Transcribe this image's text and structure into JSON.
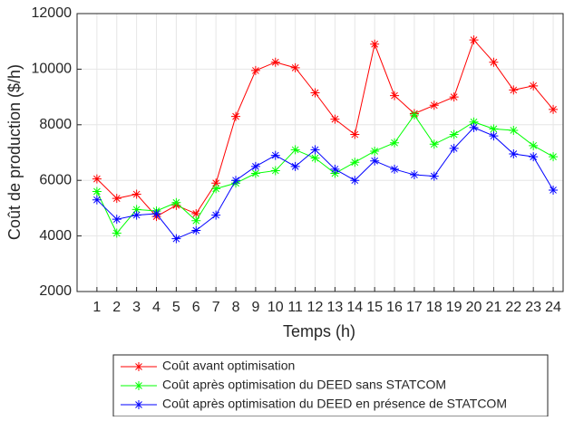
{
  "chart_data": {
    "type": "line",
    "xlabel": "Temps (h)",
    "ylabel": "Coût de production ($/h)",
    "x": [
      1,
      2,
      3,
      4,
      5,
      6,
      7,
      8,
      9,
      10,
      11,
      12,
      13,
      14,
      15,
      16,
      17,
      18,
      19,
      20,
      21,
      22,
      23,
      24
    ],
    "series": [
      {
        "name": "Coût avant optimisation",
        "color": "#ff0000",
        "values": [
          6050,
          5350,
          5500,
          4700,
          5100,
          4800,
          5900,
          8300,
          9950,
          10250,
          10050,
          9150,
          8200,
          7650,
          10900,
          9050,
          8400,
          8700,
          9000,
          11050,
          10250,
          9250,
          9400,
          8550
        ]
      },
      {
        "name": "Coût après optimisation du DEED sans STATCOM",
        "color": "#00ff00",
        "values": [
          5600,
          4100,
          4950,
          4900,
          5200,
          4550,
          5700,
          5900,
          6250,
          6350,
          7100,
          6800,
          6250,
          6650,
          7050,
          7350,
          8350,
          7300,
          7650,
          8100,
          7850,
          7800,
          7250,
          6850
        ]
      },
      {
        "name": "Coût après optimisation du DEED en présence de STATCOM",
        "color": "#0000ff",
        "values": [
          5300,
          4600,
          4750,
          4800,
          3900,
          4200,
          4750,
          6000,
          6500,
          6900,
          6500,
          7100,
          6400,
          6000,
          6700,
          6400,
          6200,
          6150,
          7150,
          7900,
          7600,
          6950,
          6850,
          5650
        ]
      }
    ],
    "xlim": [
      0,
      24.5
    ],
    "xticks": [
      1,
      2,
      3,
      4,
      5,
      6,
      7,
      8,
      9,
      10,
      11,
      12,
      13,
      14,
      15,
      16,
      17,
      18,
      19,
      20,
      21,
      22,
      23,
      24
    ],
    "ylim": [
      2000,
      12000
    ],
    "yticks": [
      2000,
      4000,
      6000,
      8000,
      10000,
      12000
    ],
    "grid": true,
    "legend": "bottom"
  }
}
